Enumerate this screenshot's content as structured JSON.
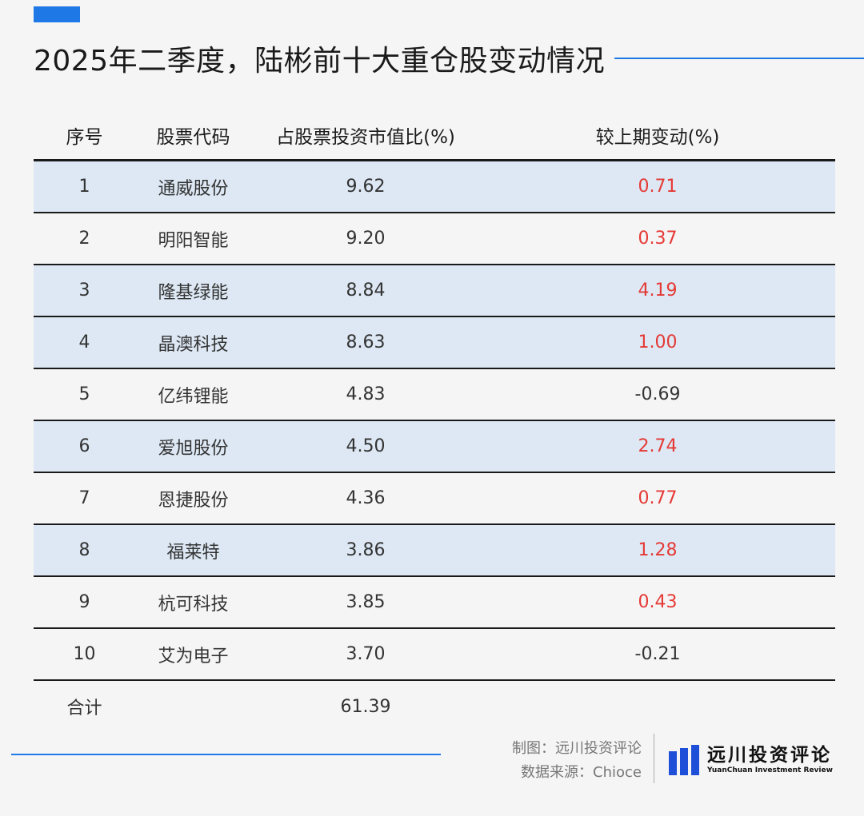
{
  "title": "2025年二季度，陆彬前十大重仓股变动情况",
  "colors": {
    "accent": "#1e78e6",
    "row_shade": "#dde8f4",
    "positive": "#e53935",
    "logo": "#1e4fd8"
  },
  "table": {
    "headers": [
      "序号",
      "股票代码",
      "占股票投资市值比(%)",
      "较上期变动(%)"
    ],
    "rows": [
      {
        "no": "1",
        "name": "通威股份",
        "ratio": "9.62",
        "change": "0.71",
        "dir": "pos"
      },
      {
        "no": "2",
        "name": "明阳智能",
        "ratio": "9.20",
        "change": "0.37",
        "dir": "pos"
      },
      {
        "no": "3",
        "name": "隆基绿能",
        "ratio": "8.84",
        "change": "4.19",
        "dir": "pos"
      },
      {
        "no": "4",
        "name": "晶澳科技",
        "ratio": "8.63",
        "change": "1.00",
        "dir": "pos"
      },
      {
        "no": "5",
        "name": "亿纬锂能",
        "ratio": "4.83",
        "change": "-0.69",
        "dir": "neg"
      },
      {
        "no": "6",
        "name": "爱旭股份",
        "ratio": "4.50",
        "change": "2.74",
        "dir": "pos"
      },
      {
        "no": "7",
        "name": "恩捷股份",
        "ratio": "4.36",
        "change": "0.77",
        "dir": "pos"
      },
      {
        "no": "8",
        "name": "福莱特",
        "ratio": "3.86",
        "change": "1.28",
        "dir": "pos"
      },
      {
        "no": "9",
        "name": "杭可科技",
        "ratio": "3.85",
        "change": "0.43",
        "dir": "pos"
      },
      {
        "no": "10",
        "name": "艾为电子",
        "ratio": "3.70",
        "change": "-0.21",
        "dir": "neg"
      }
    ],
    "total": {
      "label": "合计",
      "ratio": "61.39"
    }
  },
  "credits": {
    "maker": "制图：远川投资评论",
    "source": "数据来源：Chioce"
  },
  "logo": {
    "cn": "远川投资评论",
    "en": "YuanChuan Investment Review"
  }
}
